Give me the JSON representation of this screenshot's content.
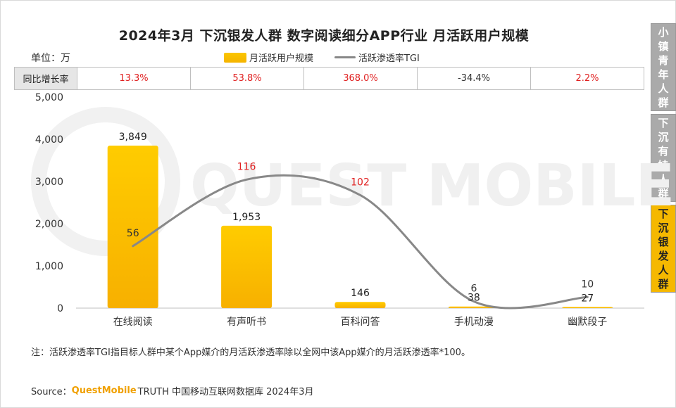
{
  "title": "2024年3月 下沉银发人群 数字阅读细分APP行业 月活跃用户规模",
  "unit": "单位：万",
  "legend": {
    "bar": "月活跃用户规模",
    "line": "活跃渗透率TGI"
  },
  "yoy": {
    "label": "同比增长率",
    "values": [
      "13.3%",
      "53.8%",
      "368.0%",
      "-34.4%",
      "2.2%"
    ],
    "colors": [
      "#e02020",
      "#e02020",
      "#e02020",
      "#333333",
      "#e02020"
    ]
  },
  "side_tabs": [
    {
      "label": "小镇青年人群",
      "active": false
    },
    {
      "label": "下沉有娃人群",
      "active": false
    },
    {
      "label": "下沉银发人群",
      "active": true
    }
  ],
  "watermark": "QUEST MOBILE",
  "chart_data": {
    "type": "bar",
    "categories": [
      "在线阅读",
      "有声听书",
      "百科问答",
      "手机动漫",
      "幽默段子"
    ],
    "series": [
      {
        "name": "月活跃用户规模",
        "type": "bar",
        "values": [
          3849,
          1953,
          146,
          38,
          27
        ],
        "labels": [
          "3,849",
          "1,953",
          "146",
          "38",
          "27"
        ]
      },
      {
        "name": "活跃渗透率TGI",
        "type": "line",
        "values": [
          56,
          116,
          102,
          6,
          10
        ],
        "labels": [
          "56",
          "116",
          "102",
          "6",
          "10"
        ],
        "label_colors": [
          "#333333",
          "#e02020",
          "#e02020",
          "#333333",
          "#333333"
        ]
      }
    ],
    "ylim": [
      0,
      5000
    ],
    "yticks": [
      "0",
      "1,000",
      "2,000",
      "3,000",
      "4,000",
      "5,000"
    ],
    "grid": false
  },
  "note": "注：活跃渗透率TGI指目标人群中某个App媒介的月活跃渗透率除以全网中该App媒介的月活跃渗透率*100。",
  "source": {
    "prefix": "Source：",
    "brand": "QuestMobile",
    "rest": "TRUTH 中国移动互联网数据库 2024年3月"
  },
  "colors": {
    "accent": "#f5b800",
    "line": "#888888",
    "tab_inactive": "#aaaaaa",
    "tab_active": "#f5b800"
  }
}
